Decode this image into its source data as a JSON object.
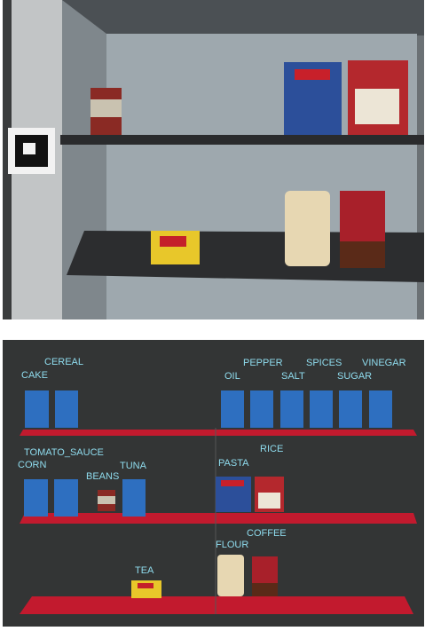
{
  "labels": [
    "CAKE",
    "CEREAL",
    "PEPPER",
    "OIL",
    "SALT",
    "SPICES",
    "SUGAR",
    "VINEGAR",
    "TOMATO_SAUCE",
    "CORN",
    "BEANS",
    "TUNA",
    "PASTA",
    "RICE",
    "FLOUR",
    "COFFEE",
    "TEA"
  ]
}
